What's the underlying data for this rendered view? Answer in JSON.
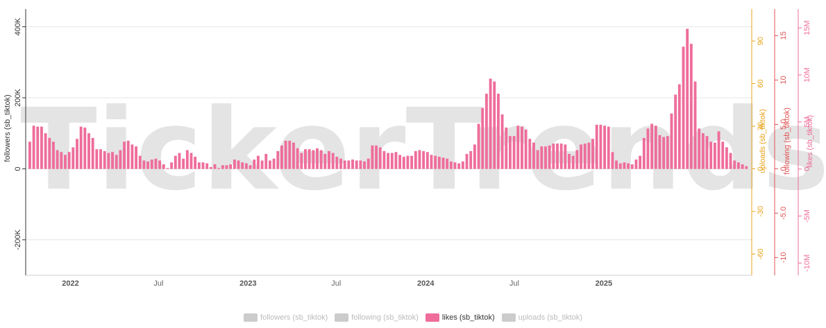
{
  "watermark": "TickerTrends",
  "chart_data": {
    "type": "bar",
    "x_start": "2021-10-01",
    "x_end": "2025-11-01",
    "x_ticks": [
      {
        "label": "2022",
        "date": "2022-01-01",
        "bold": true
      },
      {
        "label": "Jul",
        "date": "2022-07-01",
        "bold": false
      },
      {
        "label": "2023",
        "date": "2023-01-01",
        "bold": true
      },
      {
        "label": "Jul",
        "date": "2023-07-01",
        "bold": false
      },
      {
        "label": "2024",
        "date": "2024-01-01",
        "bold": true
      },
      {
        "label": "Jul",
        "date": "2024-07-01",
        "bold": false
      },
      {
        "label": "2025",
        "date": "2025-01-01",
        "bold": true
      }
    ],
    "axes": [
      {
        "key": "followers",
        "label": "followers (sb_tiktok)",
        "color": "#333333",
        "side": "left",
        "range": [
          -300000,
          450000
        ],
        "ticks": [
          {
            "value": 400000,
            "label": "400K"
          },
          {
            "value": 200000,
            "label": "200K"
          },
          {
            "value": 0,
            "label": "0"
          },
          {
            "value": -200000,
            "label": "-200K"
          }
        ]
      },
      {
        "key": "uploads",
        "label": "uploads (sb_tiktok)",
        "color": "#e8a317",
        "side": "right",
        "range": [
          -75,
          112.5
        ],
        "ticks": [
          {
            "value": 90,
            "label": "90"
          },
          {
            "value": 60,
            "label": "60"
          },
          {
            "value": 30,
            "label": "30"
          },
          {
            "value": 0,
            "label": "0"
          },
          {
            "value": -30,
            "label": "-30"
          },
          {
            "value": -60,
            "label": "-60"
          }
        ]
      },
      {
        "key": "following",
        "label": "following (sb_tiktok)",
        "color": "#e05252",
        "side": "right",
        "range": [
          -12,
          18
        ],
        "ticks": [
          {
            "value": 15,
            "label": "15"
          },
          {
            "value": 10,
            "label": "10"
          },
          {
            "value": 5,
            "label": "5.0"
          },
          {
            "value": 0,
            "label": "0"
          },
          {
            "value": -5,
            "label": "-5.0"
          },
          {
            "value": -10,
            "label": "-10"
          }
        ]
      },
      {
        "key": "likes",
        "label": "likes (sb_tiktok)",
        "color": "#ee6d9b",
        "side": "right",
        "range": [
          -11300000,
          17000000
        ],
        "ticks": [
          {
            "value": 15000000,
            "label": "15M"
          },
          {
            "value": 10000000,
            "label": "10M"
          },
          {
            "value": 5000000,
            "label": "5M"
          },
          {
            "value": 0,
            "label": "0"
          },
          {
            "value": -5000000,
            "label": "-5M"
          },
          {
            "value": -10000000,
            "label": "-10M"
          }
        ]
      }
    ],
    "series": [
      {
        "name": "likes (sb_tiktok)",
        "color": "#ee6d9b",
        "axis": "likes",
        "visible": true,
        "values": [
          2900000,
          4600000,
          4500000,
          4500000,
          3800000,
          3300000,
          2900000,
          2000000,
          1800000,
          1500000,
          1800000,
          2300000,
          3200000,
          4500000,
          4400000,
          3800000,
          3300000,
          2100000,
          2100000,
          1900000,
          1700000,
          1800000,
          1500000,
          2000000,
          2900000,
          3000000,
          2600000,
          2400000,
          1400000,
          900000,
          800000,
          1000000,
          1100000,
          900000,
          500000,
          100000,
          700000,
          1400000,
          1700000,
          1100000,
          2000000,
          1700000,
          1300000,
          700000,
          700000,
          600000,
          200000,
          500000,
          100000,
          400000,
          400000,
          500000,
          1000000,
          900000,
          700000,
          600000,
          400000,
          1000000,
          1400000,
          900000,
          1600000,
          900000,
          1100000,
          1900000,
          2500000,
          3000000,
          3000000,
          2800000,
          2200000,
          1700000,
          2100000,
          2100000,
          2000000,
          2200000,
          2000000,
          1600000,
          1900000,
          1700000,
          1300000,
          1100000,
          900000,
          900000,
          1000000,
          900000,
          900000,
          800000,
          1100000,
          2500000,
          2500000,
          2300000,
          1900000,
          1700000,
          1700000,
          1800000,
          1500000,
          1300000,
          1400000,
          1400000,
          1900000,
          2000000,
          1900000,
          1800000,
          1500000,
          1400000,
          1300000,
          1200000,
          1100000,
          800000,
          700000,
          600000,
          800000,
          1600000,
          1900000,
          2600000,
          4800000,
          6500000,
          8000000,
          9600000,
          9300000,
          8000000,
          5800000,
          4400000,
          3500000,
          3500000,
          4600000,
          4500000,
          4200000,
          3200000,
          2800000,
          2000000,
          2400000,
          2400000,
          2500000,
          2700000,
          2700000,
          2700000,
          2600000,
          1600000,
          1400000,
          2000000,
          2600000,
          2700000,
          2800000,
          3200000,
          4700000,
          4700000,
          4600000,
          4500000,
          1800000,
          900000,
          600000,
          700000,
          600000,
          500000,
          1000000,
          1400000,
          3300000,
          4300000,
          4800000,
          4600000,
          3600000,
          3400000,
          3500000,
          5900000,
          7900000,
          9000000,
          13000000,
          14900000,
          13300000,
          9300000,
          4300000,
          3800000,
          3500000,
          2900000,
          2800000,
          4000000,
          2900000,
          2300000,
          1700000,
          900000,
          700000,
          500000,
          300000
        ]
      },
      {
        "name": "followers (sb_tiktok)",
        "color": "#cccccc",
        "axis": "followers",
        "visible": false
      },
      {
        "name": "following (sb_tiktok)",
        "color": "#cccccc",
        "axis": "following",
        "visible": false
      },
      {
        "name": "uploads (sb_tiktok)",
        "color": "#cccccc",
        "axis": "uploads",
        "visible": false
      }
    ],
    "legend": {
      "placement": "bottom-center",
      "items": [
        {
          "label": "followers (sb_tiktok)",
          "color": "#cccccc",
          "active": false
        },
        {
          "label": "following (sb_tiktok)",
          "color": "#cccccc",
          "active": false
        },
        {
          "label": "likes (sb_tiktok)",
          "color": "#ee6d9b",
          "active": true
        },
        {
          "label": "uploads (sb_tiktok)",
          "color": "#cccccc",
          "active": false
        }
      ]
    },
    "grid": true
  }
}
